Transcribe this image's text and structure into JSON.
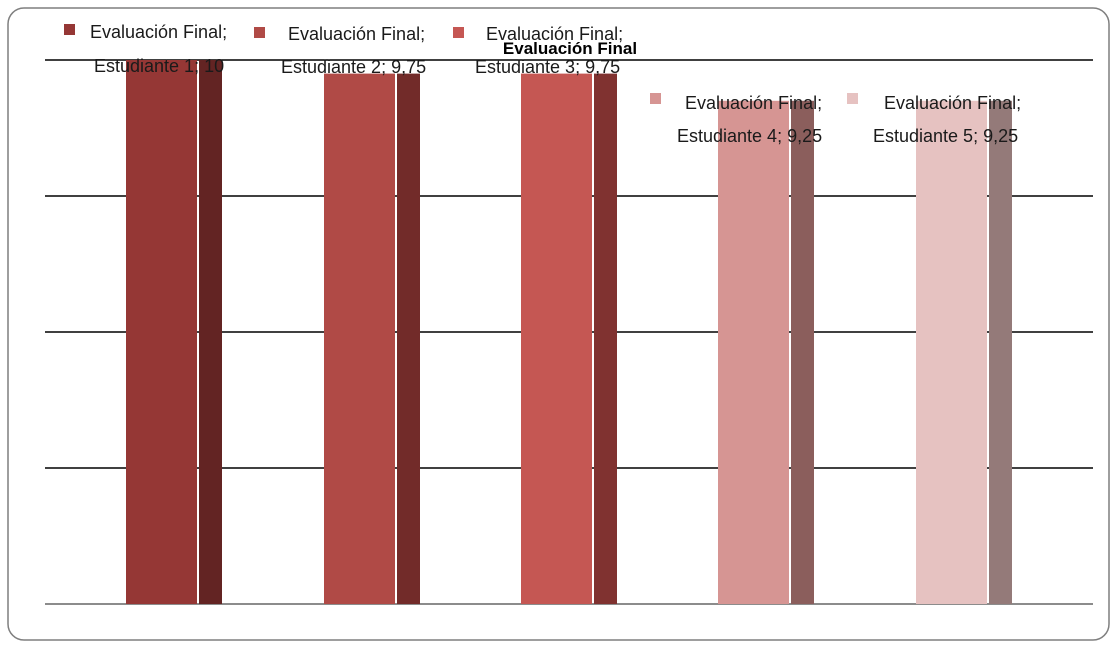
{
  "chart_data": {
    "type": "bar",
    "title": "Evaluación Final",
    "xlabel": "",
    "ylabel": "",
    "ylim": [
      0,
      10
    ],
    "gridlines": true,
    "series": [
      {
        "label_line1": "Evaluación Final;",
        "label_line2": "Estudiante 1; 10",
        "value": 10,
        "color": "#953735",
        "side_color": "#632423"
      },
      {
        "label_line1": "Evaluación Final;",
        "label_line2": "Estudiante 2; 9,75",
        "value": 9.75,
        "color": "#B04A46",
        "side_color": "#722B29"
      },
      {
        "label_line1": "Evaluación Final;",
        "label_line2": "Estudiante 3; 9,75",
        "value": 9.75,
        "color": "#C55753",
        "side_color": "#803230"
      },
      {
        "label_line1": "Evaluación Final;",
        "label_line2": "Estudiante 4; 9,25",
        "value": 9.25,
        "color": "#D69593",
        "side_color": "#8B5E5C"
      },
      {
        "label_line1": "Evaluación Final;",
        "label_line2": "Estudiante 5; 9,25",
        "value": 9.25,
        "color": "#E6C2C1",
        "side_color": "#947A79"
      }
    ]
  }
}
